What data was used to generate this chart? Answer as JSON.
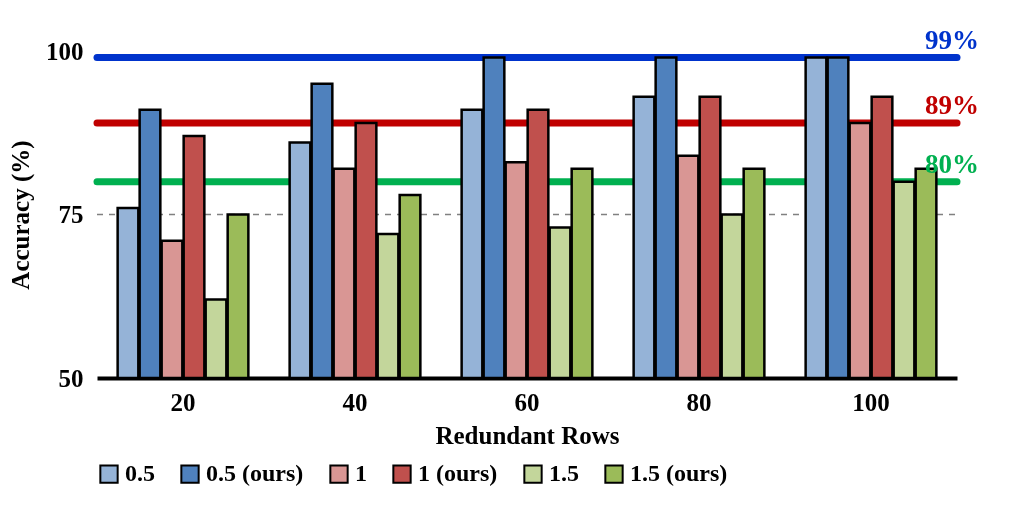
{
  "chart_data": {
    "type": "bar",
    "xlabel": "Redundant Rows",
    "ylabel": "Accuracy (%)",
    "categories": [
      "20",
      "40",
      "60",
      "80",
      "100"
    ],
    "series": [
      {
        "name": "0.5",
        "color": "#95b3d7",
        "values": [
          76,
          86,
          91,
          93,
          99
        ]
      },
      {
        "name": "0.5 (ours)",
        "color": "#4f81bd",
        "values": [
          91,
          95,
          99,
          99,
          99
        ]
      },
      {
        "name": "1",
        "color": "#d99694",
        "values": [
          71,
          82,
          83,
          84,
          89
        ]
      },
      {
        "name": "1 (ours)",
        "color": "#c0504d",
        "values": [
          87,
          89,
          91,
          93,
          93
        ]
      },
      {
        "name": "1.5",
        "color": "#c3d69b",
        "values": [
          62,
          72,
          73,
          75,
          80
        ]
      },
      {
        "name": "1.5 (ours)",
        "color": "#9bbb59",
        "values": [
          75,
          78,
          82,
          82,
          82
        ]
      }
    ],
    "ylim": [
      50,
      100
    ],
    "yticks": [
      50,
      75,
      100
    ],
    "ref_lines": [
      {
        "axis": "y",
        "value": 99,
        "label": "99%",
        "color": "#0033cc"
      },
      {
        "axis": "y",
        "value": 89,
        "label": "89%",
        "color": "#c00000"
      },
      {
        "axis": "y",
        "value": 80,
        "label": "80%",
        "color": "#00b050"
      },
      {
        "axis": "y",
        "value": 75,
        "label": null,
        "color": "#808080",
        "line_style": "dashed"
      }
    ],
    "legend": "bottom",
    "grid": false
  }
}
